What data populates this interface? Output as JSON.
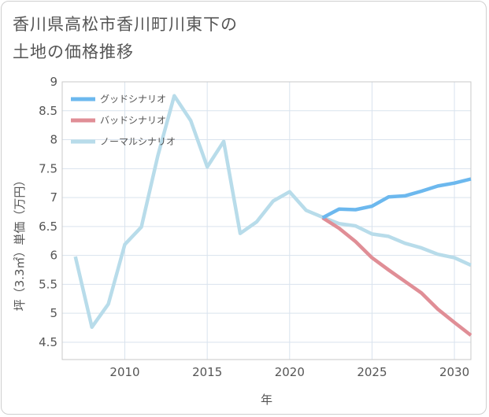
{
  "title_lines": [
    "香川県高松市香川町川東下の",
    "土地の価格推移"
  ],
  "chart_data": {
    "type": "line",
    "title": "香川県高松市香川町川東下の土地の価格推移",
    "xlabel": "年",
    "ylabel": "坪（3.3㎡）単価（万円）",
    "xlim": [
      2006.2,
      2031
    ],
    "ylim": [
      4.2,
      9
    ],
    "xticks": [
      2010,
      2015,
      2020,
      2025,
      2030
    ],
    "yticks": [
      4.5,
      5,
      5.5,
      6,
      6.5,
      7,
      7.5,
      8,
      8.5,
      9
    ],
    "ytick_labels": [
      "4.5",
      "5",
      "5.5",
      "6",
      "6.5",
      "7",
      "7.5",
      "8",
      "8.5",
      "9"
    ],
    "grid": true,
    "legend_position": "top-left",
    "series": [
      {
        "name": "グッドシナリオ",
        "color": "#6cb8ee",
        "x": [
          2022,
          2023,
          2024,
          2025,
          2026,
          2027,
          2028,
          2029,
          2030,
          2031
        ],
        "values": [
          6.65,
          6.8,
          6.79,
          6.85,
          7.01,
          7.03,
          7.11,
          7.2,
          7.25,
          7.32
        ]
      },
      {
        "name": "バッドシナリオ",
        "color": "#e08e96",
        "x": [
          2022,
          2023,
          2024,
          2025,
          2026,
          2027,
          2028,
          2029,
          2030,
          2031
        ],
        "values": [
          6.65,
          6.47,
          6.24,
          5.96,
          5.75,
          5.55,
          5.35,
          5.07,
          4.84,
          4.62
        ]
      },
      {
        "name": "ノーマルシナリオ",
        "color": "#b8dcea",
        "x": [
          2007,
          2008,
          2009,
          2010,
          2011,
          2012,
          2013,
          2014,
          2015,
          2016,
          2017,
          2018,
          2019,
          2020,
          2021,
          2022,
          2023,
          2024,
          2025,
          2026,
          2027,
          2028,
          2029,
          2030,
          2031
        ],
        "values": [
          5.98,
          4.76,
          5.16,
          6.19,
          6.49,
          7.72,
          8.76,
          8.33,
          7.53,
          7.97,
          6.38,
          6.58,
          6.94,
          7.1,
          6.78,
          6.66,
          6.55,
          6.51,
          6.37,
          6.33,
          6.21,
          6.13,
          6.02,
          5.96,
          5.83
        ]
      }
    ]
  }
}
